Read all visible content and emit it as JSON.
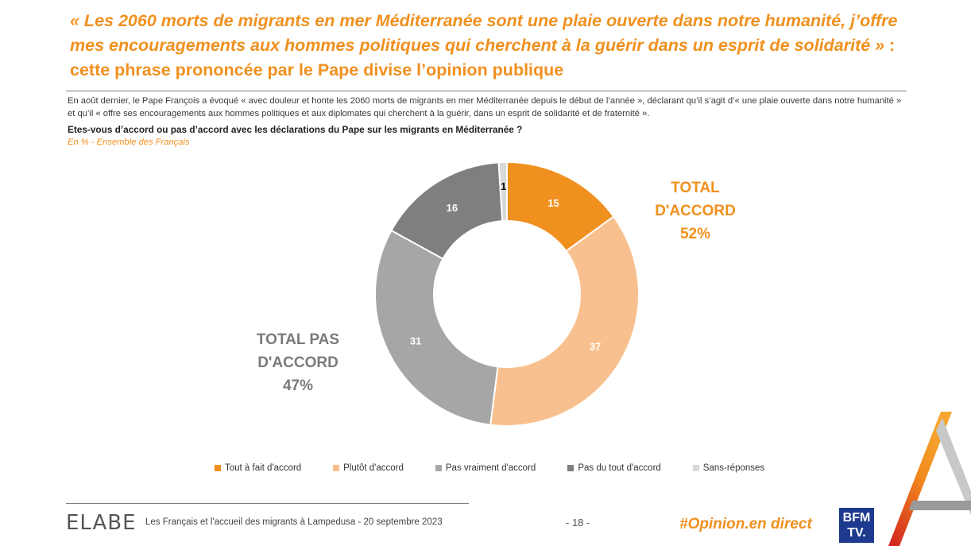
{
  "header": {
    "title_quote": "« Les 2060 morts de migrants en mer Méditerranée sont une plaie ouverte dans notre humanité, j’offre mes encouragements aux hommes politiques qui cherchent à la guérir dans un esprit de solidarité »",
    "title_rest": " : cette phrase prononcée par le Pape divise l’opinion publique",
    "intro": "En août dernier, le Pape François a évoqué « avec douleur et honte les 2060 morts de migrants en mer Méditerranée depuis le début de l’année », déclarant qu’il s’agit d’« une plaie ouverte dans notre humanité » et qu’il « offre ses encouragements aux hommes politiques et aux diplomates qui cherchent à la guérir, dans un esprit de solidarité et de fraternité ».",
    "question": "Etes-vous d’accord ou pas d’accord avec les déclarations du Pape sur les migrants en Méditerranée ?",
    "basis": "En % - Ensemble des Français"
  },
  "chart_data": {
    "type": "pie",
    "donut": true,
    "categories": [
      "Tout à fait d'accord",
      "Plutôt d'accord",
      "Pas vraiment d'accord",
      "Pas du tout d'accord",
      "Sans-réponses"
    ],
    "values": [
      15,
      37,
      31,
      16,
      1
    ],
    "colors": [
      "#f0901e",
      "#f9c08f",
      "#a6a6a6",
      "#7f7f7f",
      "#d9d9d9"
    ],
    "label_colors": [
      "#ffffff",
      "#ffffff",
      "#ffffff",
      "#ffffff",
      "#000000"
    ],
    "legend_position": "bottom",
    "annotations": {
      "total_accord": {
        "line1": "TOTAL",
        "line2": "D'ACCORD",
        "value": "52%"
      },
      "total_pas_accord": {
        "line1": "TOTAL PAS",
        "line2": "D'ACCORD",
        "value": "47%"
      }
    }
  },
  "footer": {
    "brand": "ELABE",
    "text": "Les Français et l'accueil des migrants à Lampedusa - 20 septembre 2023",
    "page": "- 18 -",
    "hashtag": "#Opinion.en direct",
    "bfm_line1": "BFM",
    "bfm_line2": "TV."
  }
}
